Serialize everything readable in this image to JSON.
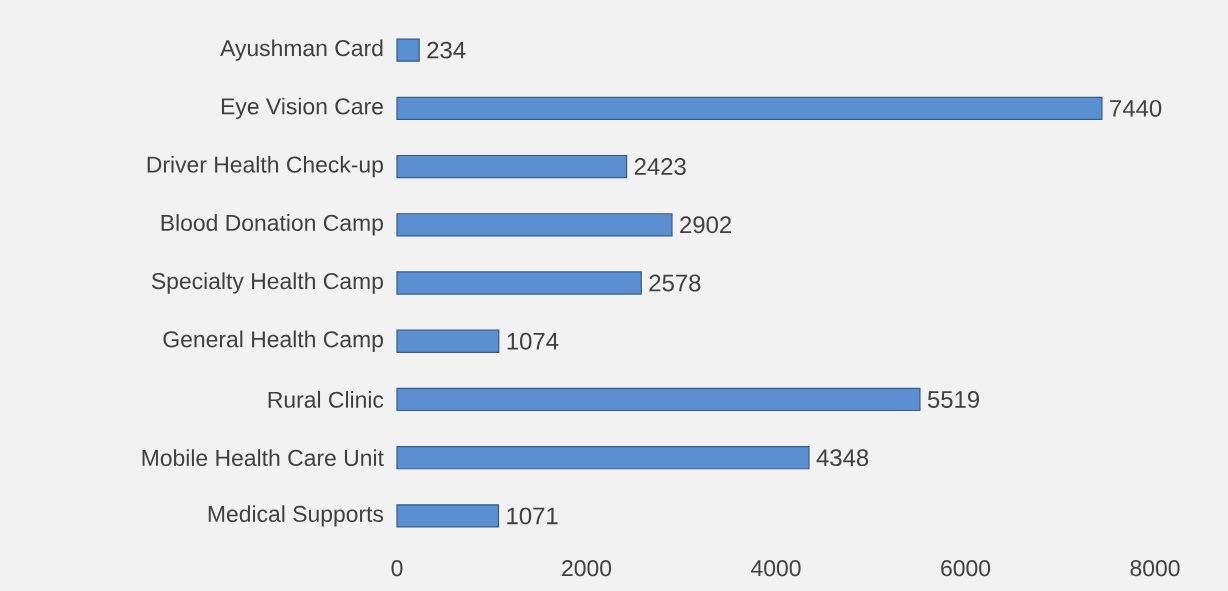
{
  "chart_data": {
    "type": "bar",
    "orientation": "horizontal",
    "categories": [
      "Ayushman Card",
      "Eye Vision Care",
      "Driver Health Check-up",
      "Blood Donation Camp",
      "Specialty Health Camp",
      "General Health Camp",
      "Rural Clinic",
      "Mobile Health Care Unit",
      "Medical Supports"
    ],
    "values": [
      234,
      7440,
      2423,
      2902,
      2578,
      1074,
      5519,
      4348,
      1071
    ],
    "color": "#5a8fd2",
    "xlim": [
      0,
      8000
    ],
    "xticks": [
      0,
      2000,
      4000,
      6000,
      8000
    ],
    "data_labels": true
  }
}
